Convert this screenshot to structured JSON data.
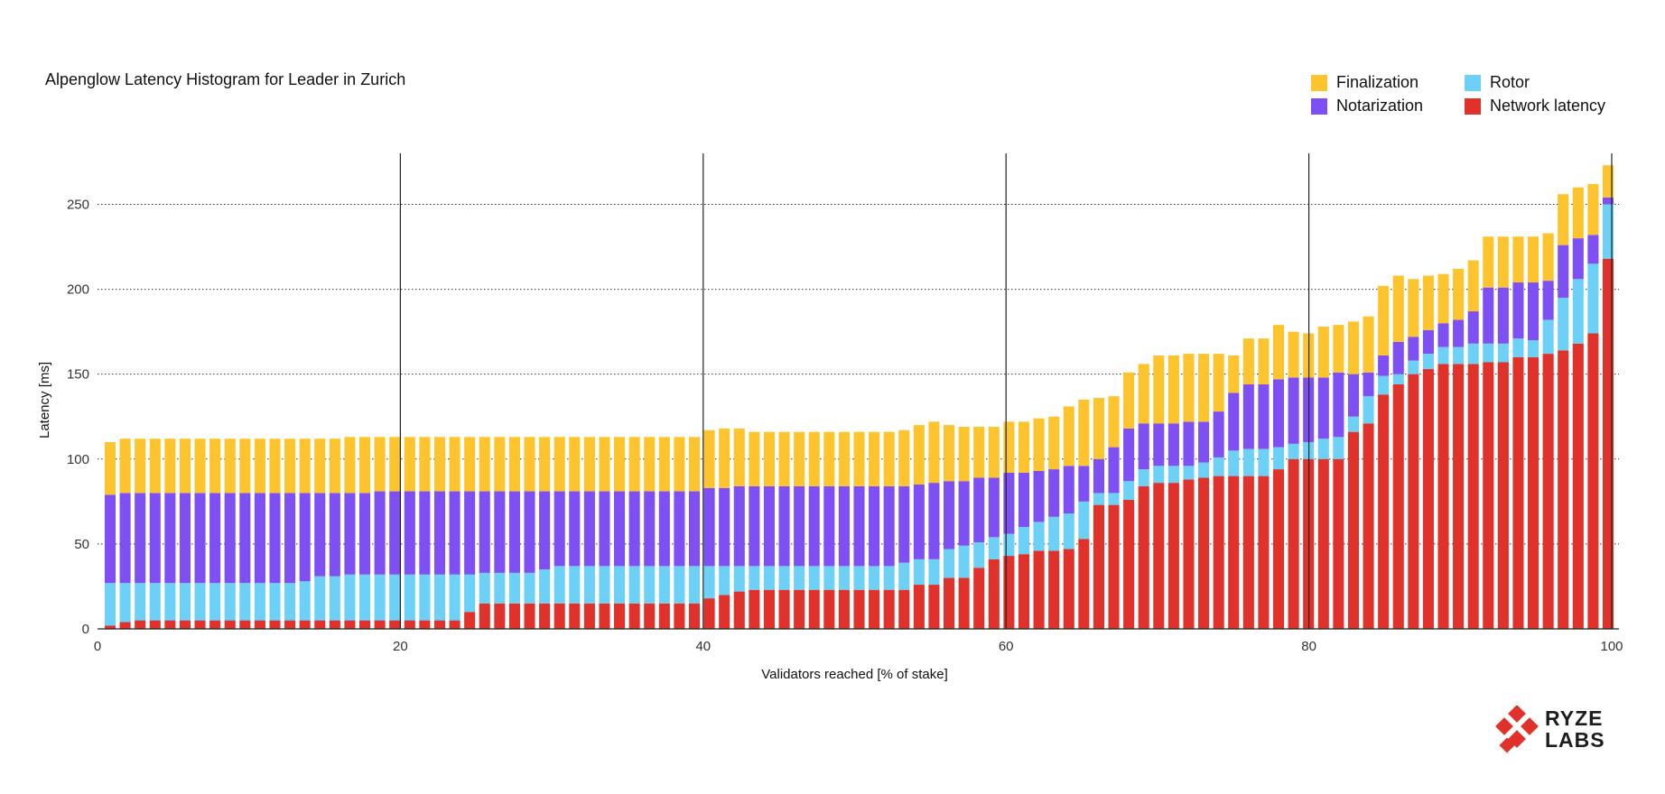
{
  "chart_data": {
    "type": "bar",
    "stacked": true,
    "title": "Alpenglow Latency Histogram for Leader in Zurich",
    "xlabel": "Validators reached [% of stake]",
    "ylabel": "Latency [ms]",
    "xlim": [
      0,
      100
    ],
    "ylim": [
      0,
      280
    ],
    "xticks": [
      0,
      20,
      40,
      60,
      80,
      100
    ],
    "yticks": [
      0,
      50,
      100,
      150,
      200,
      250
    ],
    "legend": "top-right",
    "series": [
      {
        "name": "Network latency",
        "color": "#e0312a",
        "values": [
          2,
          4,
          5,
          5,
          5,
          5,
          5,
          5,
          5,
          5,
          5,
          5,
          5,
          5,
          5,
          5,
          5,
          5,
          5,
          5,
          5,
          5,
          5,
          5,
          10,
          15,
          15,
          15,
          15,
          15,
          15,
          15,
          15,
          15,
          15,
          15,
          15,
          15,
          15,
          15,
          18,
          20,
          22,
          23,
          23,
          23,
          23,
          23,
          23,
          23,
          23,
          23,
          23,
          23,
          26,
          26,
          30,
          30,
          36,
          41,
          43,
          44,
          46,
          46,
          47,
          53,
          73,
          73,
          76,
          84,
          86,
          86,
          88,
          89,
          90,
          90,
          90,
          90,
          94,
          100,
          100,
          100,
          100,
          116,
          121,
          138,
          144,
          150,
          153,
          156,
          156,
          156,
          157,
          157,
          160,
          160,
          162,
          164,
          168,
          174,
          218
        ]
      },
      {
        "name": "Rotor",
        "color": "#6dd0f6",
        "values": [
          25,
          23,
          22,
          22,
          22,
          22,
          22,
          22,
          22,
          22,
          22,
          22,
          22,
          23,
          26,
          26,
          27,
          27,
          27,
          27,
          27,
          27,
          27,
          27,
          22,
          18,
          18,
          18,
          18,
          20,
          22,
          22,
          22,
          22,
          22,
          22,
          22,
          22,
          22,
          22,
          19,
          17,
          15,
          14,
          14,
          14,
          14,
          14,
          14,
          14,
          14,
          14,
          14,
          16,
          15,
          15,
          17,
          19,
          15,
          13,
          13,
          16,
          17,
          20,
          21,
          22,
          7,
          7,
          11,
          10,
          10,
          10,
          8,
          9,
          11,
          15,
          16,
          16,
          13,
          9,
          10,
          12,
          13,
          9,
          16,
          11,
          6,
          8,
          9,
          10,
          10,
          12,
          11,
          11,
          11,
          10,
          20,
          31,
          38,
          41,
          32
        ]
      },
      {
        "name": "Notarization",
        "color": "#7e4ff2",
        "values": [
          52,
          53,
          53,
          53,
          53,
          53,
          53,
          53,
          53,
          53,
          53,
          53,
          53,
          52,
          49,
          49,
          48,
          48,
          49,
          49,
          49,
          49,
          49,
          49,
          49,
          48,
          48,
          48,
          48,
          46,
          44,
          44,
          44,
          44,
          44,
          44,
          44,
          44,
          44,
          44,
          46,
          46,
          47,
          47,
          47,
          47,
          47,
          47,
          47,
          47,
          47,
          47,
          47,
          45,
          44,
          45,
          40,
          38,
          38,
          35,
          36,
          32,
          30,
          28,
          28,
          21,
          20,
          27,
          31,
          27,
          25,
          25,
          26,
          24,
          27,
          34,
          38,
          38,
          40,
          39,
          38,
          36,
          38,
          25,
          14,
          12,
          19,
          14,
          14,
          14,
          16,
          19,
          33,
          33,
          33,
          34,
          23,
          31,
          24,
          17,
          4
        ]
      },
      {
        "name": "Finalization",
        "color": "#fdc42d",
        "values": [
          31,
          32,
          32,
          32,
          32,
          32,
          32,
          32,
          32,
          32,
          32,
          32,
          32,
          32,
          32,
          32,
          33,
          33,
          32,
          32,
          32,
          32,
          32,
          32,
          32,
          32,
          32,
          32,
          32,
          32,
          32,
          32,
          32,
          32,
          32,
          32,
          32,
          32,
          32,
          32,
          34,
          35,
          34,
          32,
          32,
          32,
          32,
          32,
          32,
          32,
          32,
          32,
          32,
          33,
          35,
          36,
          33,
          32,
          30,
          30,
          30,
          30,
          31,
          31,
          35,
          39,
          36,
          30,
          33,
          35,
          40,
          40,
          40,
          40,
          34,
          22,
          27,
          27,
          32,
          27,
          26,
          30,
          28,
          31,
          33,
          41,
          39,
          34,
          32,
          29,
          30,
          30,
          30,
          30,
          27,
          27,
          28,
          30,
          30,
          30,
          19
        ]
      }
    ]
  },
  "logo": {
    "line1": "RYZE",
    "line2": "LABS"
  }
}
